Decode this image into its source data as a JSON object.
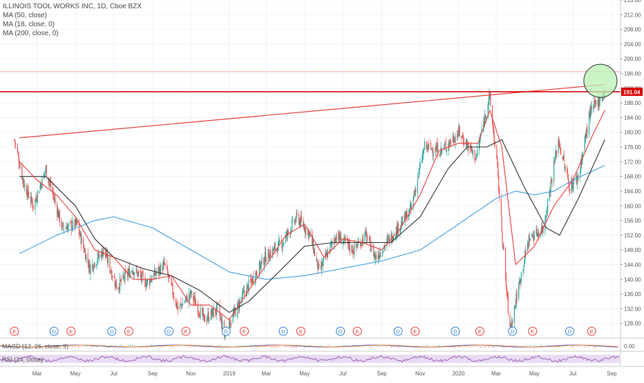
{
  "legend": {
    "symbol": "ILLINOIS TOOL WORKS INC, 1D, Cboe BZX",
    "ma50": "MA (50, close)",
    "ma18": "MA (18, close, 0)",
    "ma200": "MA (200, close, 0)"
  },
  "panes": {
    "macd_label": "MACD (12, 26, close, 9)",
    "rsi_label": "RSI (14, close)",
    "macd_axis_label": "0.00"
  },
  "colors": {
    "candle_up": "#26a69a",
    "candle_down": "#ef5350",
    "ma18": "#e53935",
    "ma50": "#2b2b2b",
    "ma200": "#4aa3df",
    "trendline": "#e53935",
    "level_line": "#d50000",
    "circle_fill": "#b9f2b4",
    "price_tag": "#d50000",
    "rsi_band": "#e9dcf2",
    "rsi_line": "#8e44ad",
    "event_earnings": "#e53935",
    "event_dividend": "#2a7fd4"
  },
  "chart_data": {
    "type": "candlestick",
    "title": "ILLINOIS TOOL WORKS INC, 1D, Cboe BZX",
    "ylim": [
      124,
      216
    ],
    "y_ticks": [
      "128.00",
      "132.00",
      "136.00",
      "140.00",
      "144.00",
      "148.00",
      "152.00",
      "156.00",
      "160.00",
      "164.00",
      "168.00",
      "172.00",
      "176.00",
      "180.00",
      "184.00",
      "188.00",
      "192.00",
      "196.00",
      "200.00",
      "204.00",
      "208.00",
      "212.00",
      "216.00"
    ],
    "x_ticks": [
      "Mar",
      "May",
      "Jul",
      "Sep",
      "Nov",
      "2019",
      "Mar",
      "May",
      "Jul",
      "Sep",
      "Nov",
      "2020",
      "Mar",
      "May",
      "Jul",
      "Sep"
    ],
    "last_price_label": "191.04",
    "horizontal_level": 191.04,
    "upper_thin_level": 196.5,
    "trendline": {
      "from": {
        "date": "2018-02-01",
        "price": 178.5
      },
      "to": {
        "date": "2020-08-21",
        "price": 193.0
      }
    },
    "highlight_circle": {
      "date": "2020-08-14",
      "price": 194.0
    },
    "key_prices": [
      {
        "date": "2018-01-24",
        "price": 178
      },
      {
        "date": "2018-02-08",
        "price": 166
      },
      {
        "date": "2018-02-23",
        "price": 160
      },
      {
        "date": "2018-03-15",
        "price": 170
      },
      {
        "date": "2018-04-10",
        "price": 154
      },
      {
        "date": "2018-05-03",
        "price": 155
      },
      {
        "date": "2018-05-24",
        "price": 143
      },
      {
        "date": "2018-06-15",
        "price": 148
      },
      {
        "date": "2018-07-06",
        "price": 138
      },
      {
        "date": "2018-07-31",
        "price": 143
      },
      {
        "date": "2018-08-22",
        "price": 139
      },
      {
        "date": "2018-09-20",
        "price": 144
      },
      {
        "date": "2018-10-11",
        "price": 132
      },
      {
        "date": "2018-11-01",
        "price": 136
      },
      {
        "date": "2018-11-22",
        "price": 129
      },
      {
        "date": "2018-12-14",
        "price": 132
      },
      {
        "date": "2018-12-24",
        "price": 125
      },
      {
        "date": "2019-01-24",
        "price": 136
      },
      {
        "date": "2019-02-27",
        "price": 146
      },
      {
        "date": "2019-03-27",
        "price": 150
      },
      {
        "date": "2019-04-19",
        "price": 157
      },
      {
        "date": "2019-05-10",
        "price": 152
      },
      {
        "date": "2019-05-24",
        "price": 142
      },
      {
        "date": "2019-06-20",
        "price": 152
      },
      {
        "date": "2019-07-18",
        "price": 148
      },
      {
        "date": "2019-08-06",
        "price": 152
      },
      {
        "date": "2019-08-22",
        "price": 146
      },
      {
        "date": "2019-09-27",
        "price": 154
      },
      {
        "date": "2019-10-17",
        "price": 159
      },
      {
        "date": "2019-11-08",
        "price": 176
      },
      {
        "date": "2019-12-05",
        "price": 175
      },
      {
        "date": "2020-01-02",
        "price": 180
      },
      {
        "date": "2020-01-29",
        "price": 173
      },
      {
        "date": "2020-02-19",
        "price": 190
      },
      {
        "date": "2020-03-02",
        "price": 172
      },
      {
        "date": "2020-03-16",
        "price": 140
      },
      {
        "date": "2020-03-23",
        "price": 126
      },
      {
        "date": "2020-04-08",
        "price": 140
      },
      {
        "date": "2020-04-22",
        "price": 151
      },
      {
        "date": "2020-05-15",
        "price": 154
      },
      {
        "date": "2020-06-08",
        "price": 178
      },
      {
        "date": "2020-06-26",
        "price": 165
      },
      {
        "date": "2020-07-10",
        "price": 168
      },
      {
        "date": "2020-07-28",
        "price": 185
      },
      {
        "date": "2020-08-12",
        "price": 189
      },
      {
        "date": "2020-08-21",
        "price": 191.04
      }
    ],
    "ma18_points": [
      {
        "date": "2018-02-01",
        "price": 172
      },
      {
        "date": "2018-03-01",
        "price": 167
      },
      {
        "date": "2018-04-01",
        "price": 163
      },
      {
        "date": "2018-05-01",
        "price": 157
      },
      {
        "date": "2018-06-01",
        "price": 148
      },
      {
        "date": "2018-07-01",
        "price": 146
      },
      {
        "date": "2018-08-01",
        "price": 140
      },
      {
        "date": "2018-09-01",
        "price": 140
      },
      {
        "date": "2018-10-01",
        "price": 141
      },
      {
        "date": "2018-11-01",
        "price": 133
      },
      {
        "date": "2018-12-01",
        "price": 133
      },
      {
        "date": "2019-01-01",
        "price": 129
      },
      {
        "date": "2019-02-01",
        "price": 137
      },
      {
        "date": "2019-03-01",
        "price": 144
      },
      {
        "date": "2019-04-01",
        "price": 152
      },
      {
        "date": "2019-05-01",
        "price": 155
      },
      {
        "date": "2019-06-01",
        "price": 146
      },
      {
        "date": "2019-07-01",
        "price": 151
      },
      {
        "date": "2019-08-01",
        "price": 150
      },
      {
        "date": "2019-09-01",
        "price": 148
      },
      {
        "date": "2019-10-01",
        "price": 154
      },
      {
        "date": "2019-11-01",
        "price": 163
      },
      {
        "date": "2019-12-01",
        "price": 175
      },
      {
        "date": "2020-01-01",
        "price": 177
      },
      {
        "date": "2020-02-01",
        "price": 177
      },
      {
        "date": "2020-02-20",
        "price": 186
      },
      {
        "date": "2020-03-10",
        "price": 176
      },
      {
        "date": "2020-04-01",
        "price": 144
      },
      {
        "date": "2020-05-01",
        "price": 149
      },
      {
        "date": "2020-06-01",
        "price": 160
      },
      {
        "date": "2020-07-01",
        "price": 167
      },
      {
        "date": "2020-08-01",
        "price": 179
      },
      {
        "date": "2020-08-21",
        "price": 186
      }
    ],
    "ma50_points": [
      {
        "date": "2018-02-01",
        "price": 168
      },
      {
        "date": "2018-03-15",
        "price": 168
      },
      {
        "date": "2018-05-01",
        "price": 160
      },
      {
        "date": "2018-06-01",
        "price": 151
      },
      {
        "date": "2018-07-01",
        "price": 146
      },
      {
        "date": "2018-08-15",
        "price": 143
      },
      {
        "date": "2018-10-01",
        "price": 141
      },
      {
        "date": "2018-11-15",
        "price": 137
      },
      {
        "date": "2019-01-01",
        "price": 131
      },
      {
        "date": "2019-02-01",
        "price": 134
      },
      {
        "date": "2019-03-15",
        "price": 141
      },
      {
        "date": "2019-05-01",
        "price": 149
      },
      {
        "date": "2019-06-15",
        "price": 150
      },
      {
        "date": "2019-08-01",
        "price": 150
      },
      {
        "date": "2019-09-15",
        "price": 150
      },
      {
        "date": "2019-11-01",
        "price": 157
      },
      {
        "date": "2019-12-15",
        "price": 170
      },
      {
        "date": "2020-01-15",
        "price": 176
      },
      {
        "date": "2020-02-15",
        "price": 176
      },
      {
        "date": "2020-03-10",
        "price": 178
      },
      {
        "date": "2020-04-15",
        "price": 165
      },
      {
        "date": "2020-05-20",
        "price": 154
      },
      {
        "date": "2020-06-10",
        "price": 152
      },
      {
        "date": "2020-07-10",
        "price": 162
      },
      {
        "date": "2020-08-21",
        "price": 178
      }
    ],
    "ma200_points": [
      {
        "date": "2018-02-01",
        "price": 147
      },
      {
        "date": "2018-04-01",
        "price": 152
      },
      {
        "date": "2018-06-01",
        "price": 156
      },
      {
        "date": "2018-07-01",
        "price": 157
      },
      {
        "date": "2018-09-01",
        "price": 154
      },
      {
        "date": "2018-11-01",
        "price": 148
      },
      {
        "date": "2019-01-01",
        "price": 142
      },
      {
        "date": "2019-03-01",
        "price": 140
      },
      {
        "date": "2019-05-01",
        "price": 141
      },
      {
        "date": "2019-07-01",
        "price": 143
      },
      {
        "date": "2019-09-01",
        "price": 145
      },
      {
        "date": "2019-11-01",
        "price": 148
      },
      {
        "date": "2020-01-01",
        "price": 155
      },
      {
        "date": "2020-03-01",
        "price": 162
      },
      {
        "date": "2020-04-01",
        "price": 164
      },
      {
        "date": "2020-05-01",
        "price": 163
      },
      {
        "date": "2020-06-01",
        "price": 164
      },
      {
        "date": "2020-07-01",
        "price": 167
      },
      {
        "date": "2020-08-21",
        "price": 171
      }
    ],
    "events": [
      {
        "kind": "E",
        "date": "2018-01-24"
      },
      {
        "kind": "D",
        "date": "2018-03-28"
      },
      {
        "kind": "E",
        "date": "2018-04-24"
      },
      {
        "kind": "D",
        "date": "2018-06-28"
      },
      {
        "kind": "E",
        "date": "2018-07-25"
      },
      {
        "kind": "D",
        "date": "2018-09-27"
      },
      {
        "kind": "E",
        "date": "2018-10-24"
      },
      {
        "kind": "D",
        "date": "2018-12-27"
      },
      {
        "kind": "E",
        "date": "2019-01-25"
      },
      {
        "kind": "D",
        "date": "2019-03-28"
      },
      {
        "kind": "E",
        "date": "2019-04-25"
      },
      {
        "kind": "D",
        "date": "2019-06-27"
      },
      {
        "kind": "E",
        "date": "2019-07-24"
      },
      {
        "kind": "D",
        "date": "2019-09-27"
      },
      {
        "kind": "E",
        "date": "2019-10-24"
      },
      {
        "kind": "D",
        "date": "2019-12-27"
      },
      {
        "kind": "E",
        "date": "2020-02-04"
      },
      {
        "kind": "D",
        "date": "2020-03-27"
      },
      {
        "kind": "E",
        "date": "2020-04-28"
      },
      {
        "kind": "D",
        "date": "2020-06-26"
      },
      {
        "kind": "E",
        "date": "2020-07-31"
      }
    ]
  }
}
